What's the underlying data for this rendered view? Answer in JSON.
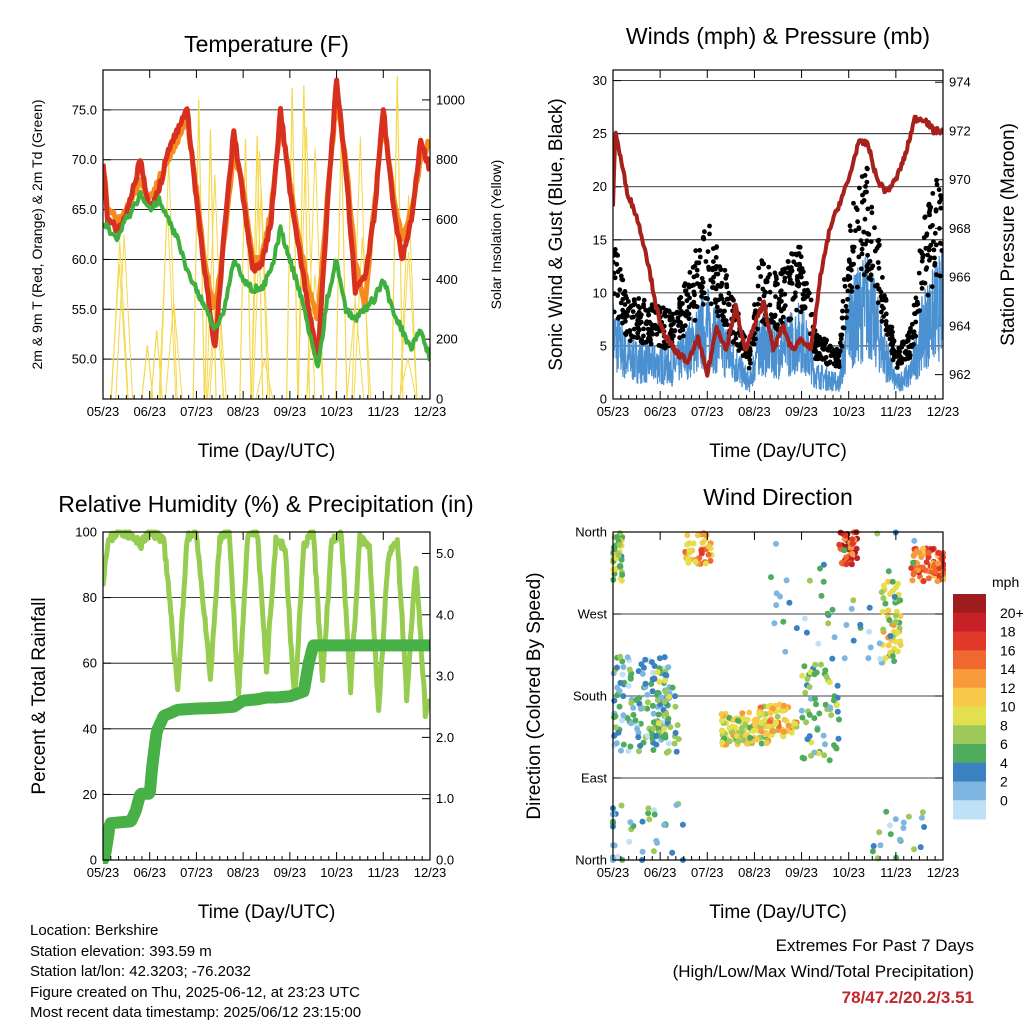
{
  "x_ticks": [
    "05/23",
    "06/23",
    "07/23",
    "08/23",
    "09/23",
    "10/23",
    "11/23",
    "12/23"
  ],
  "colors": {
    "temp2m": "#d7301f",
    "temp9m": "#f68c1f",
    "dewpoint": "#3faf3f",
    "solar": "#f5d84c",
    "wind": "#4b91d1",
    "gust": "#000000",
    "pressure": "#a6201c",
    "rh": "#96cc50",
    "precip": "#47b046",
    "extremes": "#c0282d"
  },
  "panels": {
    "temperature": {
      "title": "Temperature (F)",
      "xlabel": "Time (Day/UTC)",
      "ylabel": "2m & 9m T (Red, Orange) & 2m Td (Green)",
      "ylabel_right": "Solar Insolation (Yellow)"
    },
    "winds": {
      "title": "Winds (mph) & Pressure (mb)",
      "xlabel": "Time (Day/UTC)",
      "ylabel": "Sonic Wind & Gust (Blue, Black)",
      "ylabel_right": "Station Pressure (Maroon)"
    },
    "humidity": {
      "title": "Relative Humidity (%) & Precipitation (in)",
      "xlabel": "Time (Day/UTC)",
      "ylabel": "Percent & Total Rainfall"
    },
    "direction": {
      "title": "Wind Direction",
      "xlabel": "Time (Day/UTC)",
      "ylabel": "Direction (Colored By Speed)"
    }
  },
  "chart_data": [
    {
      "id": "temperature",
      "type": "line",
      "x": [
        0,
        0.1,
        0.3,
        0.5,
        0.8,
        1.0,
        1.2,
        1.4,
        1.6,
        1.8,
        2.0,
        2.2,
        2.4,
        2.6,
        2.8,
        3.0,
        3.2,
        3.4,
        3.6,
        3.8,
        4.0,
        4.2,
        4.4,
        4.6,
        4.8,
        5.0,
        5.2,
        5.4,
        5.6,
        5.8,
        6.0,
        6.2,
        6.4,
        6.6,
        6.8,
        7.0
      ],
      "ylim": [
        46,
        79
      ],
      "yticks": [
        50.0,
        55.0,
        60.0,
        65.0,
        70.0,
        75.0
      ],
      "y2lim": [
        0,
        1100
      ],
      "y2ticks": [
        0,
        200,
        400,
        600,
        800,
        1000
      ],
      "series": [
        {
          "key": "t9m",
          "values": [
            70,
            65,
            64,
            65,
            68,
            66,
            68,
            70,
            72,
            74,
            67,
            59,
            55,
            62,
            71,
            67,
            60,
            60,
            65,
            74,
            68,
            62,
            57,
            54,
            66,
            76,
            70,
            60,
            55,
            65,
            74,
            67,
            62,
            65,
            70,
            72
          ]
        },
        {
          "key": "t2m",
          "values": [
            70,
            64,
            63,
            64.5,
            70,
            65,
            67,
            71,
            73,
            75,
            66,
            58,
            51,
            63,
            73,
            66,
            59,
            59.5,
            64,
            75,
            67,
            61,
            55,
            50,
            65,
            78,
            69,
            57,
            58,
            64,
            75,
            66,
            60,
            64,
            72,
            69
          ]
        },
        {
          "key": "td2m",
          "values": [
            64,
            63,
            62,
            64,
            66.5,
            65,
            66,
            64,
            62,
            59,
            57,
            55,
            53,
            55,
            60,
            58,
            57,
            57,
            59,
            63,
            60,
            57,
            53,
            49,
            56,
            60,
            55,
            54,
            55,
            56,
            58,
            55,
            53,
            51,
            53,
            50
          ]
        }
      ],
      "solar_peaks": [
        180,
        230,
        1000,
        900,
        870,
        880,
        1040,
        1050,
        900,
        1080
      ],
      "solar_peak_x": [
        0.95,
        1.15,
        2.05,
        2.3,
        3.05,
        3.3,
        4.05,
        4.3,
        5.1,
        6.3
      ]
    },
    {
      "id": "winds",
      "type": "scatter",
      "ylim": [
        0,
        31
      ],
      "yticks": [
        0,
        5,
        10,
        15,
        20,
        25,
        30
      ],
      "y2lim": [
        961,
        974.5
      ],
      "y2ticks": [
        962,
        964,
        966,
        968,
        970,
        972,
        974
      ],
      "pressure_x": [
        0,
        0.05,
        0.15,
        0.3,
        0.5,
        0.7,
        1.0,
        1.3,
        1.6,
        1.8,
        2.0,
        2.2,
        2.4,
        2.6,
        2.8,
        3.0,
        3.2,
        3.4,
        3.6,
        3.8,
        4.0,
        4.2,
        4.4,
        4.6,
        4.8,
        5.0,
        5.2,
        5.4,
        5.6,
        5.8,
        6.0,
        6.2,
        6.4,
        6.6,
        6.8,
        7.0
      ],
      "pressure_values": [
        969,
        972,
        971,
        969.5,
        968.5,
        967,
        964,
        963,
        962.5,
        963.5,
        962,
        964,
        963,
        964.8,
        963,
        964,
        965,
        963,
        964,
        963,
        963.5,
        963,
        966,
        968,
        969,
        970,
        971.5,
        971.5,
        970,
        969.5,
        970,
        971,
        972.5,
        972.5,
        972,
        972
      ]
    },
    {
      "id": "humidity",
      "type": "line",
      "ylim": [
        0,
        100
      ],
      "yticks": [
        0,
        20,
        40,
        60,
        80,
        100
      ],
      "y2lim": [
        0,
        5.35
      ],
      "y2ticks": [
        0.0,
        1.0,
        2.0,
        3.0,
        4.0,
        5.0
      ],
      "rh_x": [
        0,
        0.1,
        0.3,
        0.5,
        0.8,
        1.0,
        1.3,
        1.6,
        1.8,
        2.0,
        2.3,
        2.5,
        2.7,
        2.9,
        3.1,
        3.3,
        3.5,
        3.7,
        3.9,
        4.1,
        4.3,
        4.5,
        4.7,
        4.9,
        5.1,
        5.3,
        5.5,
        5.7,
        5.9,
        6.1,
        6.3,
        6.5,
        6.7,
        6.9,
        7.0
      ],
      "rh_values": [
        85,
        97,
        100,
        100,
        96,
        100,
        98,
        52,
        98,
        100,
        55,
        98,
        100,
        50,
        98,
        100,
        58,
        98,
        95,
        48,
        96,
        100,
        55,
        98,
        100,
        52,
        98,
        95,
        45,
        92,
        98,
        50,
        90,
        45,
        48
      ],
      "precip_x": [
        0,
        0.05,
        0.15,
        0.6,
        0.7,
        0.8,
        1.0,
        1.05,
        1.15,
        1.3,
        1.6,
        2.0,
        2.4,
        2.8,
        3.0,
        3.3,
        3.5,
        3.7,
        4.0,
        4.3,
        4.4,
        4.5,
        4.6,
        5.0,
        6.0,
        7.0
      ],
      "precip_values": [
        0,
        0.1,
        0.6,
        0.63,
        0.8,
        1.08,
        1.08,
        1.5,
        2.1,
        2.35,
        2.45,
        2.47,
        2.48,
        2.5,
        2.6,
        2.62,
        2.65,
        2.65,
        2.67,
        2.75,
        3.2,
        3.5,
        3.5,
        3.5,
        3.5,
        3.5
      ]
    },
    {
      "id": "direction",
      "type": "scatter",
      "yticks": [
        "North",
        "East",
        "South",
        "West",
        "North"
      ],
      "colorbar_title": "mph",
      "colorbar_labels": [
        "20+",
        "18",
        "16",
        "14",
        "12",
        "10",
        "8",
        "6",
        "4",
        "2",
        "0"
      ],
      "colorbar_colors": [
        "#9e1b1e",
        "#c72027",
        "#e0392a",
        "#f06730",
        "#f89a3a",
        "#f7c84a",
        "#e3e04d",
        "#9cc95a",
        "#4fac5c",
        "#3a81c2",
        "#7fb6e1",
        "#bfe1f6"
      ]
    }
  ],
  "info": {
    "location": "Location: Berkshire",
    "elevation": "Station elevation: 393.59 m",
    "latlon": "Station lat/lon: 42.3203; -76.2032",
    "created": "Figure created on Thu, 2025-06-12, at 23:23 UTC",
    "timestamp": "Most recent data timestamp: 2025/06/12 23:15:00"
  },
  "extremes": {
    "title": "Extremes For Past 7 Days",
    "subtitle": "(High/Low/Max Wind/Total Precipitation)",
    "values": "78/47.2/20.2/3.51"
  }
}
